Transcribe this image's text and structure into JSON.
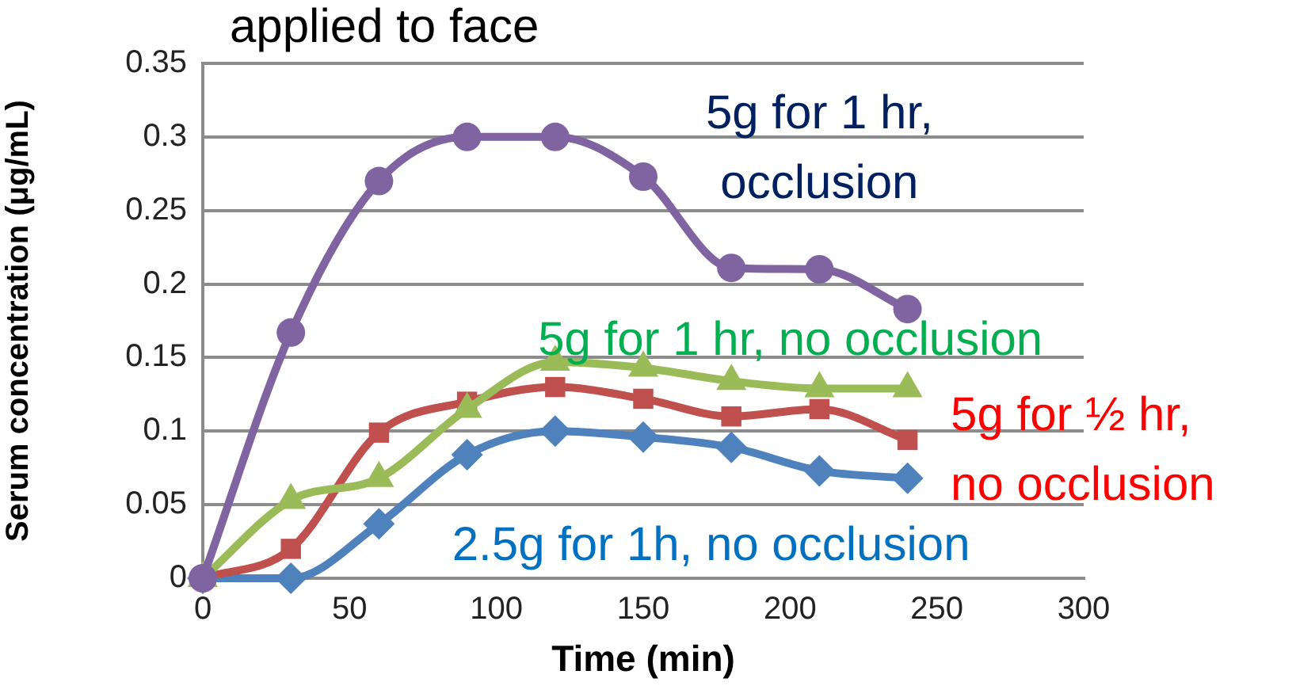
{
  "chart_data": {
    "type": "line",
    "title": "applied to face",
    "xlabel": "Time (min)",
    "ylabel": "Serum concentration (μg/mL)",
    "x": [
      0,
      30,
      60,
      90,
      120,
      150,
      180,
      210,
      240
    ],
    "series": [
      {
        "name": "5g for 1 hr, occlusion",
        "color": "#8064a2",
        "marker": "circle",
        "values": [
          0,
          0.167,
          0.27,
          0.3,
          0.3,
          0.273,
          0.211,
          0.21,
          0.183
        ]
      },
      {
        "name": "5g for 1 hr, no occlusion",
        "color": "#9bbb59",
        "marker": "triangle",
        "values": [
          0,
          0.053,
          0.068,
          0.115,
          0.147,
          0.143,
          0.134,
          0.129,
          0.129
        ]
      },
      {
        "name": "5g for ½ hr, no occlusion",
        "color": "#c0504d",
        "marker": "square",
        "values": [
          0,
          0.02,
          0.099,
          0.12,
          0.13,
          0.122,
          0.11,
          0.115,
          0.094
        ]
      },
      {
        "name": "2.5g for 1h, no occlusion",
        "color": "#4f81bd",
        "marker": "diamond",
        "values": [
          0,
          0,
          0.037,
          0.084,
          0.1,
          0.096,
          0.089,
          0.073,
          0.068
        ]
      }
    ],
    "xlim": [
      0,
      300
    ],
    "xticks": [
      0,
      50,
      100,
      150,
      200,
      250,
      300
    ],
    "ylim": [
      0,
      0.35
    ],
    "yticks": [
      0,
      0.05,
      0.1,
      0.15,
      0.2,
      0.25,
      0.3,
      0.35
    ],
    "grid": "y",
    "line_style": "solid"
  }
}
